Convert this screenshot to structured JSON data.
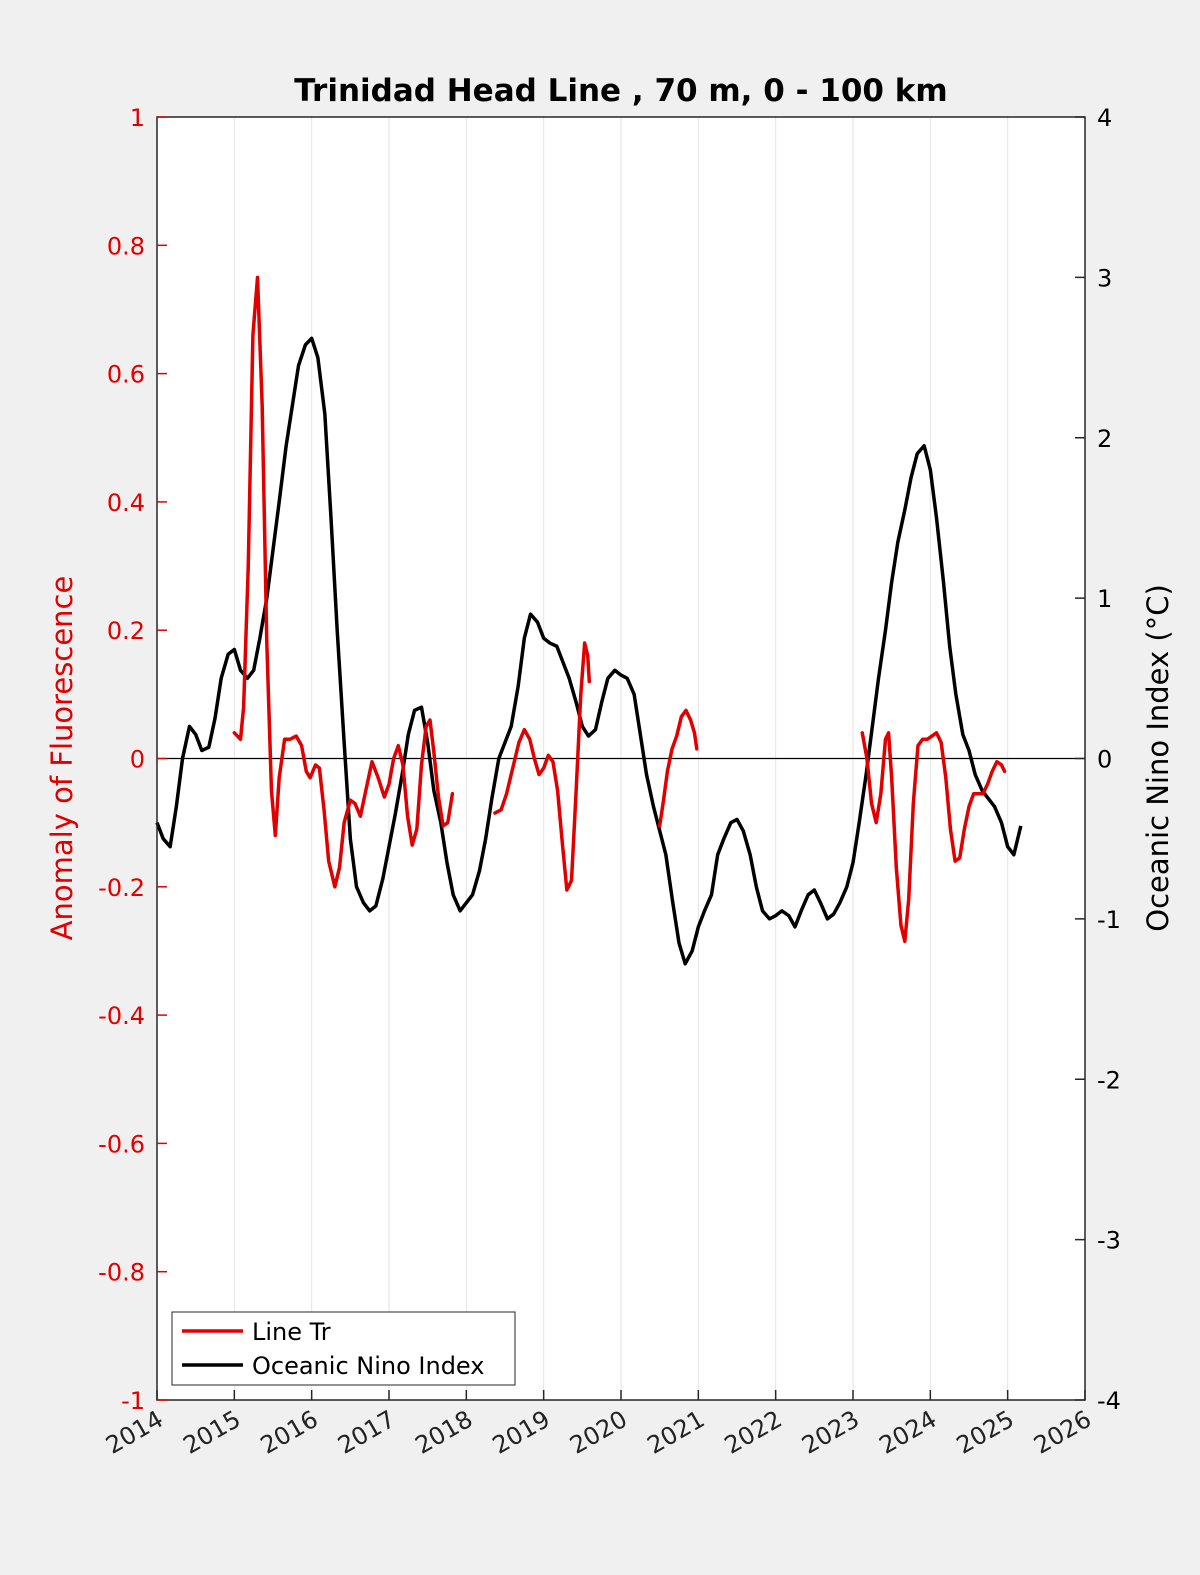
{
  "chart_data": {
    "type": "line",
    "title": "Trinidad Head Line , 70 m, 0 - 100 km",
    "ylabel_left": "Anomaly of Fluorescence",
    "ylabel_right": "Oceanic Nino Index (°C)",
    "xlim": [
      2014,
      2026
    ],
    "ylim_left": [
      -1,
      1
    ],
    "ylim_right": [
      -4,
      4
    ],
    "x_ticks": [
      "2014",
      "2015",
      "2016",
      "2017",
      "2018",
      "2019",
      "2020",
      "2021",
      "2022",
      "2023",
      "2024",
      "2025",
      "2026"
    ],
    "y_ticks_left": [
      "1",
      "0.8",
      "0.6",
      "0.4",
      "0.2",
      "0",
      "-0.2",
      "-0.4",
      "-0.6",
      "-0.8",
      "-1"
    ],
    "y_ticks_right": [
      "4",
      "3",
      "2",
      "1",
      "0",
      "-1",
      "-2",
      "-3",
      "-4"
    ],
    "grid": "vertical",
    "legend_position": "bottom-left",
    "colors": {
      "line_tr": "#e00000",
      "oni": "#000000",
      "left_axis": "#e00000"
    },
    "series": [
      {
        "name": "Line Tr",
        "axis": "left",
        "color": "#e00000",
        "segments": [
          [
            [
              2015.0,
              0.04
            ],
            [
              2015.08,
              0.03
            ],
            [
              2015.12,
              0.08
            ],
            [
              2015.18,
              0.3
            ],
            [
              2015.24,
              0.66
            ],
            [
              2015.3,
              0.75
            ],
            [
              2015.36,
              0.55
            ],
            [
              2015.42,
              0.18
            ],
            [
              2015.48,
              -0.05
            ],
            [
              2015.53,
              -0.12
            ],
            [
              2015.58,
              -0.03
            ],
            [
              2015.65,
              0.03
            ],
            [
              2015.72,
              0.03
            ],
            [
              2015.8,
              0.035
            ],
            [
              2015.87,
              0.02
            ],
            [
              2015.93,
              -0.02
            ],
            [
              2015.98,
              -0.03
            ],
            [
              2016.05,
              -0.01
            ],
            [
              2016.1,
              -0.015
            ],
            [
              2016.16,
              -0.08
            ],
            [
              2016.22,
              -0.16
            ],
            [
              2016.3,
              -0.2
            ],
            [
              2016.36,
              -0.17
            ],
            [
              2016.42,
              -0.1
            ],
            [
              2016.5,
              -0.065
            ],
            [
              2016.56,
              -0.07
            ],
            [
              2016.63,
              -0.09
            ],
            [
              2016.7,
              -0.05
            ],
            [
              2016.78,
              -0.005
            ],
            [
              2016.86,
              -0.03
            ],
            [
              2016.94,
              -0.06
            ],
            [
              2017.0,
              -0.04
            ],
            [
              2017.06,
              0.0
            ],
            [
              2017.12,
              0.02
            ],
            [
              2017.18,
              -0.01
            ],
            [
              2017.24,
              -0.09
            ],
            [
              2017.3,
              -0.135
            ],
            [
              2017.36,
              -0.11
            ],
            [
              2017.42,
              -0.01
            ],
            [
              2017.48,
              0.05
            ],
            [
              2017.53,
              0.06
            ],
            [
              2017.58,
              0.01
            ],
            [
              2017.64,
              -0.06
            ],
            [
              2017.7,
              -0.105
            ],
            [
              2017.76,
              -0.1
            ],
            [
              2017.82,
              -0.055
            ]
          ],
          [
            [
              2018.37,
              -0.085
            ],
            [
              2018.45,
              -0.08
            ],
            [
              2018.52,
              -0.055
            ],
            [
              2018.6,
              -0.015
            ],
            [
              2018.68,
              0.025
            ],
            [
              2018.75,
              0.045
            ],
            [
              2018.82,
              0.03
            ],
            [
              2018.88,
              0.0
            ],
            [
              2018.94,
              -0.025
            ],
            [
              2019.0,
              -0.015
            ],
            [
              2019.06,
              0.005
            ],
            [
              2019.12,
              -0.005
            ],
            [
              2019.18,
              -0.05
            ],
            [
              2019.24,
              -0.13
            ],
            [
              2019.3,
              -0.205
            ],
            [
              2019.36,
              -0.19
            ],
            [
              2019.42,
              -0.05
            ],
            [
              2019.48,
              0.1
            ],
            [
              2019.53,
              0.18
            ],
            [
              2019.57,
              0.16
            ],
            [
              2019.59,
              0.12
            ]
          ],
          [
            [
              2020.5,
              -0.105
            ],
            [
              2020.55,
              -0.065
            ],
            [
              2020.6,
              -0.02
            ],
            [
              2020.66,
              0.015
            ],
            [
              2020.72,
              0.035
            ],
            [
              2020.78,
              0.065
            ],
            [
              2020.84,
              0.075
            ],
            [
              2020.9,
              0.06
            ],
            [
              2020.95,
              0.04
            ],
            [
              2020.98,
              0.015
            ]
          ],
          [
            [
              2023.12,
              0.04
            ],
            [
              2023.18,
              0.0
            ],
            [
              2023.24,
              -0.07
            ],
            [
              2023.3,
              -0.1
            ],
            [
              2023.36,
              -0.055
            ],
            [
              2023.42,
              0.03
            ],
            [
              2023.46,
              0.04
            ],
            [
              2023.5,
              -0.03
            ],
            [
              2023.56,
              -0.17
            ],
            [
              2023.62,
              -0.26
            ],
            [
              2023.67,
              -0.285
            ],
            [
              2023.72,
              -0.22
            ],
            [
              2023.78,
              -0.07
            ],
            [
              2023.84,
              0.02
            ],
            [
              2023.9,
              0.03
            ],
            [
              2023.96,
              0.03
            ],
            [
              2024.02,
              0.035
            ],
            [
              2024.08,
              0.04
            ],
            [
              2024.14,
              0.025
            ],
            [
              2024.2,
              -0.03
            ],
            [
              2024.26,
              -0.11
            ],
            [
              2024.32,
              -0.16
            ],
            [
              2024.38,
              -0.155
            ],
            [
              2024.44,
              -0.11
            ],
            [
              2024.5,
              -0.075
            ],
            [
              2024.56,
              -0.055
            ],
            [
              2024.62,
              -0.055
            ],
            [
              2024.68,
              -0.055
            ],
            [
              2024.74,
              -0.04
            ],
            [
              2024.8,
              -0.02
            ],
            [
              2024.86,
              -0.005
            ],
            [
              2024.92,
              -0.01
            ],
            [
              2024.96,
              -0.02
            ]
          ]
        ]
      },
      {
        "name": "Oceanic Nino Index",
        "axis": "right",
        "color": "#000000",
        "points": [
          [
            2014.0,
            -0.4
          ],
          [
            2014.08,
            -0.5
          ],
          [
            2014.17,
            -0.55
          ],
          [
            2014.25,
            -0.3
          ],
          [
            2014.33,
            0.0
          ],
          [
            2014.42,
            0.2
          ],
          [
            2014.5,
            0.15
          ],
          [
            2014.58,
            0.05
          ],
          [
            2014.67,
            0.07
          ],
          [
            2014.75,
            0.25
          ],
          [
            2014.83,
            0.5
          ],
          [
            2014.92,
            0.65
          ],
          [
            2015.0,
            0.68
          ],
          [
            2015.08,
            0.55
          ],
          [
            2015.17,
            0.5
          ],
          [
            2015.25,
            0.55
          ],
          [
            2015.33,
            0.75
          ],
          [
            2015.42,
            1.0
          ],
          [
            2015.5,
            1.3
          ],
          [
            2015.58,
            1.6
          ],
          [
            2015.67,
            1.95
          ],
          [
            2015.75,
            2.2
          ],
          [
            2015.83,
            2.45
          ],
          [
            2015.92,
            2.58
          ],
          [
            2016.0,
            2.62
          ],
          [
            2016.08,
            2.5
          ],
          [
            2016.17,
            2.15
          ],
          [
            2016.25,
            1.5
          ],
          [
            2016.33,
            0.8
          ],
          [
            2016.42,
            0.1
          ],
          [
            2016.5,
            -0.5
          ],
          [
            2016.58,
            -0.8
          ],
          [
            2016.67,
            -0.9
          ],
          [
            2016.75,
            -0.95
          ],
          [
            2016.83,
            -0.92
          ],
          [
            2016.92,
            -0.75
          ],
          [
            2017.0,
            -0.55
          ],
          [
            2017.08,
            -0.35
          ],
          [
            2017.17,
            -0.1
          ],
          [
            2017.25,
            0.15
          ],
          [
            2017.33,
            0.3
          ],
          [
            2017.42,
            0.32
          ],
          [
            2017.5,
            0.1
          ],
          [
            2017.58,
            -0.2
          ],
          [
            2017.67,
            -0.4
          ],
          [
            2017.75,
            -0.65
          ],
          [
            2017.83,
            -0.85
          ],
          [
            2017.92,
            -0.95
          ],
          [
            2018.0,
            -0.9
          ],
          [
            2018.08,
            -0.85
          ],
          [
            2018.17,
            -0.7
          ],
          [
            2018.25,
            -0.5
          ],
          [
            2018.33,
            -0.25
          ],
          [
            2018.42,
            0.0
          ],
          [
            2018.5,
            0.1
          ],
          [
            2018.58,
            0.2
          ],
          [
            2018.67,
            0.45
          ],
          [
            2018.75,
            0.75
          ],
          [
            2018.83,
            0.9
          ],
          [
            2018.92,
            0.85
          ],
          [
            2019.0,
            0.75
          ],
          [
            2019.08,
            0.72
          ],
          [
            2019.17,
            0.7
          ],
          [
            2019.25,
            0.6
          ],
          [
            2019.33,
            0.5
          ],
          [
            2019.42,
            0.35
          ],
          [
            2019.5,
            0.2
          ],
          [
            2019.58,
            0.14
          ],
          [
            2019.67,
            0.18
          ],
          [
            2019.75,
            0.35
          ],
          [
            2019.83,
            0.5
          ],
          [
            2019.92,
            0.55
          ],
          [
            2020.0,
            0.52
          ],
          [
            2020.08,
            0.5
          ],
          [
            2020.17,
            0.4
          ],
          [
            2020.25,
            0.15
          ],
          [
            2020.33,
            -0.1
          ],
          [
            2020.42,
            -0.3
          ],
          [
            2020.5,
            -0.45
          ],
          [
            2020.58,
            -0.6
          ],
          [
            2020.67,
            -0.9
          ],
          [
            2020.75,
            -1.15
          ],
          [
            2020.83,
            -1.28
          ],
          [
            2020.92,
            -1.2
          ],
          [
            2021.0,
            -1.05
          ],
          [
            2021.08,
            -0.95
          ],
          [
            2021.17,
            -0.85
          ],
          [
            2021.25,
            -0.6
          ],
          [
            2021.33,
            -0.5
          ],
          [
            2021.42,
            -0.4
          ],
          [
            2021.5,
            -0.38
          ],
          [
            2021.58,
            -0.45
          ],
          [
            2021.67,
            -0.6
          ],
          [
            2021.75,
            -0.8
          ],
          [
            2021.83,
            -0.95
          ],
          [
            2021.92,
            -1.0
          ],
          [
            2022.0,
            -0.98
          ],
          [
            2022.08,
            -0.95
          ],
          [
            2022.17,
            -0.98
          ],
          [
            2022.25,
            -1.05
          ],
          [
            2022.33,
            -0.95
          ],
          [
            2022.42,
            -0.85
          ],
          [
            2022.5,
            -0.82
          ],
          [
            2022.58,
            -0.9
          ],
          [
            2022.67,
            -1.0
          ],
          [
            2022.75,
            -0.97
          ],
          [
            2022.83,
            -0.9
          ],
          [
            2022.92,
            -0.8
          ],
          [
            2023.0,
            -0.65
          ],
          [
            2023.08,
            -0.4
          ],
          [
            2023.17,
            -0.1
          ],
          [
            2023.25,
            0.2
          ],
          [
            2023.33,
            0.5
          ],
          [
            2023.42,
            0.8
          ],
          [
            2023.5,
            1.1
          ],
          [
            2023.58,
            1.35
          ],
          [
            2023.67,
            1.55
          ],
          [
            2023.75,
            1.75
          ],
          [
            2023.83,
            1.9
          ],
          [
            2023.92,
            1.95
          ],
          [
            2024.0,
            1.8
          ],
          [
            2024.08,
            1.5
          ],
          [
            2024.17,
            1.1
          ],
          [
            2024.25,
            0.7
          ],
          [
            2024.33,
            0.4
          ],
          [
            2024.42,
            0.15
          ],
          [
            2024.5,
            0.05
          ],
          [
            2024.58,
            -0.1
          ],
          [
            2024.67,
            -0.2
          ],
          [
            2024.75,
            -0.25
          ],
          [
            2024.83,
            -0.3
          ],
          [
            2024.92,
            -0.4
          ],
          [
            2025.0,
            -0.55
          ],
          [
            2025.08,
            -0.6
          ],
          [
            2025.17,
            -0.42
          ]
        ]
      }
    ]
  }
}
